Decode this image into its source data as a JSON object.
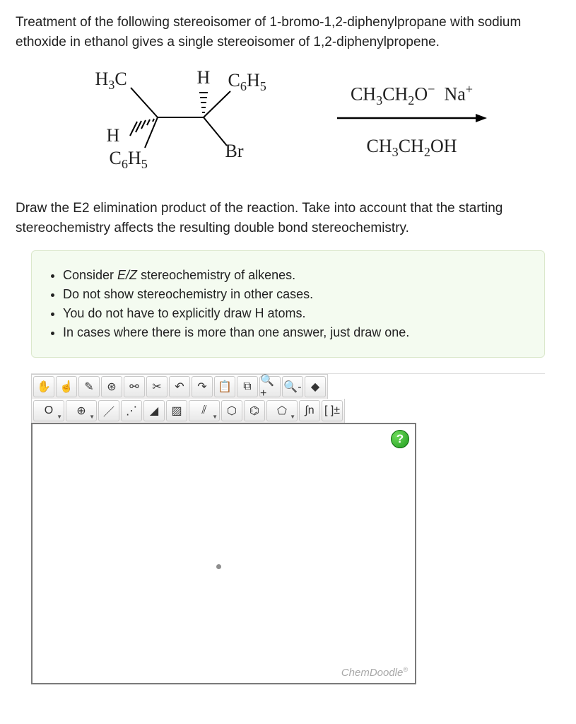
{
  "question": {
    "intro": "Treatment of the following stereoisomer of 1-bromo-1,2-diphenylpropane with sodium ethoxide in ethanol gives a single stereoisomer of 1,2-diphenylpropene.",
    "prompt": "Draw the E2 elimination product of the reaction. Take into account that the starting stereochemistry affects the resulting double bond stereochemistry."
  },
  "molecule": {
    "top_left": "H₃C",
    "top_h": "H",
    "top_right": "C₆H₅",
    "left_h": "H",
    "bottom_left": "C₆H₅",
    "bottom_right": "Br"
  },
  "reagent": {
    "top": "CH₃CH₂O⁻ Na⁺",
    "bottom": "CH₃CH₂OH"
  },
  "instructions": [
    "Consider <span class='em'>E/Z</span> stereochemistry of alkenes.",
    "Do not show stereochemistry in other cases.",
    "You do not have to explicitly draw H atoms.",
    "In cases where there is more than one answer, just draw one."
  ],
  "toolbar_row1": [
    {
      "name": "hand-icon",
      "glyph": "✋",
      "interact": true
    },
    {
      "name": "lasso-icon",
      "glyph": "☝",
      "interact": true
    },
    {
      "name": "erase-icon",
      "glyph": "✎",
      "interact": true
    },
    {
      "name": "clean-icon",
      "glyph": "⊛",
      "interact": true
    },
    {
      "name": "template-icon",
      "glyph": "⚯",
      "interact": true
    },
    {
      "name": "clip-icon",
      "glyph": "✂",
      "interact": true
    },
    {
      "name": "undo-icon",
      "glyph": "↶",
      "interact": true
    },
    {
      "name": "redo-icon",
      "glyph": "↷",
      "interact": true
    },
    {
      "name": "paste-icon",
      "glyph": "📋",
      "interact": true
    },
    {
      "name": "copy-icon",
      "glyph": "⧉",
      "interact": true
    },
    {
      "name": "zoom-in-icon",
      "glyph": "🔍+",
      "interact": true
    },
    {
      "name": "zoom-out-icon",
      "glyph": "🔍-",
      "interact": true
    },
    {
      "name": "color-icon",
      "glyph": "◆",
      "interact": true
    }
  ],
  "toolbar_row2": [
    {
      "name": "atom-o-icon",
      "glyph": "O",
      "interact": true,
      "dd": true
    },
    {
      "name": "charge-icon",
      "glyph": "⊕",
      "interact": true,
      "dd": true
    },
    {
      "name": "single-bond-icon",
      "glyph": "／",
      "interact": true
    },
    {
      "name": "dotted-bond-icon",
      "glyph": "⋰",
      "interact": true
    },
    {
      "name": "wedge-bond-icon",
      "glyph": "◢",
      "interact": true
    },
    {
      "name": "hash-bond-icon",
      "glyph": "▨",
      "interact": true
    },
    {
      "name": "double-bond-icon",
      "glyph": "⫽",
      "interact": true,
      "dd": true
    },
    {
      "name": "cyclohexane-icon",
      "glyph": "⬡",
      "interact": true
    },
    {
      "name": "benzene-icon",
      "glyph": "⌬",
      "interact": true
    },
    {
      "name": "cyclopentane-icon",
      "glyph": "⬠",
      "interact": true,
      "dd": true
    },
    {
      "name": "chain-icon",
      "glyph": "∫n",
      "interact": true
    },
    {
      "name": "bracket-icon",
      "glyph": "[ ]±",
      "interact": true
    }
  ],
  "canvas": {
    "watermark": "ChemDoodle",
    "help": "?"
  },
  "colors": {
    "hint_bg": "#f4fbf0",
    "hint_border": "#dbe8cc",
    "canvas_border": "#7a7a7a",
    "help_green": "#1f9c1f"
  }
}
